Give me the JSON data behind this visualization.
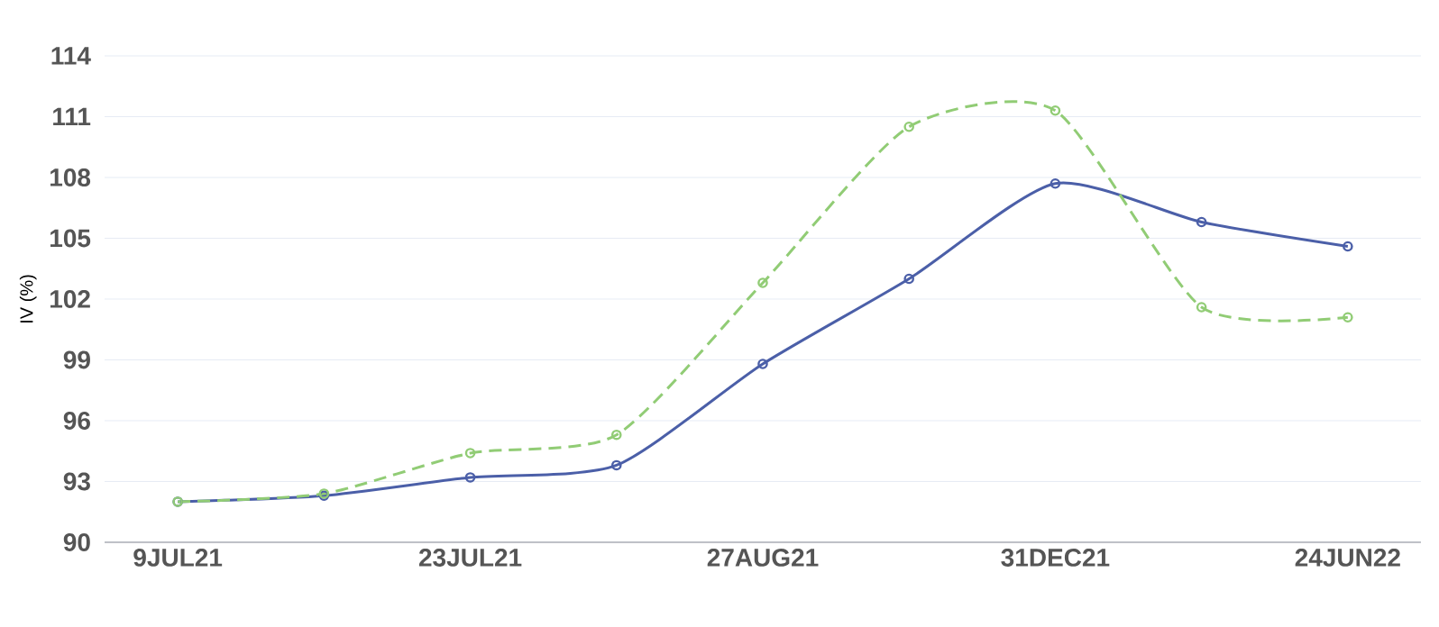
{
  "chart_data": {
    "type": "line",
    "ylabel": "IV (%)",
    "categories": [
      "9JUL21",
      null,
      "23JUL21",
      null,
      "27AUG21",
      null,
      "31DEC21",
      null,
      "24JUN22"
    ],
    "series": [
      {
        "color": "#4b5fa8",
        "line_style": "solid",
        "values": [
          92.0,
          92.3,
          93.2,
          93.8,
          98.8,
          103.0,
          107.7,
          105.8,
          104.6
        ]
      },
      {
        "color": "#91cc75",
        "line_style": "dashed",
        "values": [
          92.0,
          92.4,
          94.4,
          95.3,
          102.8,
          110.5,
          111.3,
          101.6,
          101.1
        ]
      }
    ],
    "ylim": [
      90,
      114
    ],
    "yticks": [
      90,
      93,
      96,
      99,
      102,
      105,
      108,
      111,
      114
    ],
    "grid": "y",
    "marker": "circle"
  }
}
